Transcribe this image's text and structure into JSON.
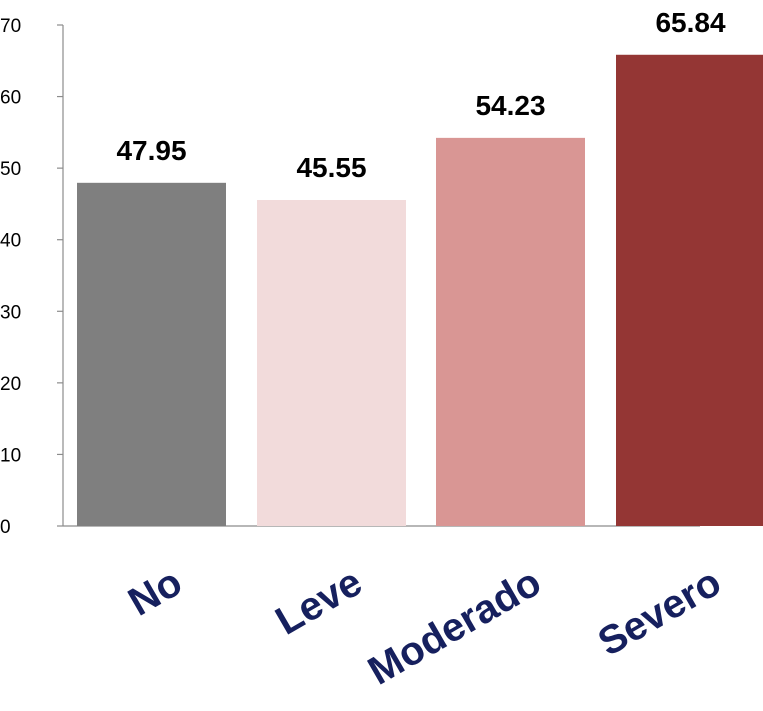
{
  "chart_data": {
    "type": "bar",
    "categories": [
      "No",
      "Leve",
      "Moderado",
      "Severo"
    ],
    "values": [
      47.95,
      45.55,
      54.23,
      65.84
    ],
    "value_labels": [
      "47.95",
      "45.55",
      "54.23",
      "65.84"
    ],
    "bar_colors": [
      "#7f7f7f",
      "#f2dbdb",
      "#d99694",
      "#943634"
    ],
    "category_label_color": "#16205e",
    "title": "",
    "xlabel": "",
    "ylabel": "",
    "ylim": [
      0,
      70
    ],
    "yticks": [
      0,
      10,
      20,
      30,
      40,
      50,
      60,
      70
    ],
    "grid": false,
    "legend": "none"
  }
}
